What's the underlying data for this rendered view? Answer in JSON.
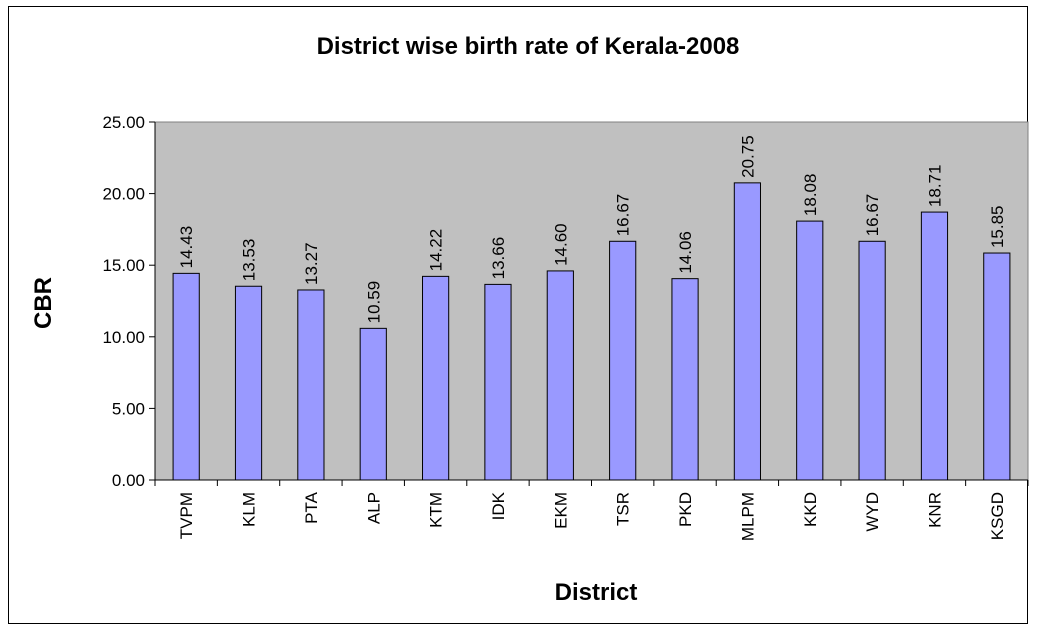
{
  "chart_data": {
    "type": "bar",
    "title": "District wise birth rate of Kerala-2008",
    "xlabel": "District",
    "ylabel": "CBR",
    "categories": [
      "TVPM",
      "KLM",
      "PTA",
      "ALP",
      "KTM",
      "IDK",
      "EKM",
      "TSR",
      "PKD",
      "MLPM",
      "KKD",
      "WYD",
      "KNR",
      "KSGD"
    ],
    "values": [
      14.43,
      13.53,
      13.27,
      10.59,
      14.22,
      13.66,
      14.6,
      16.67,
      14.06,
      20.75,
      18.08,
      16.67,
      18.71,
      15.85
    ],
    "data_labels": [
      "14.43",
      "13.53",
      "13.27",
      "10.59",
      "14.22",
      "13.66",
      "14.60",
      "16.67",
      "14.06",
      "20.75",
      "18.08",
      "16.67",
      "18.71",
      "15.85"
    ],
    "ylim": [
      0,
      25
    ],
    "yticks": [
      "0.00",
      "5.00",
      "10.00",
      "15.00",
      "20.00",
      "25.00"
    ],
    "grid": false,
    "legend": "none",
    "colors": {
      "plot_background": "#c0c0c0",
      "bar_fill": "#9999ff",
      "bar_stroke": "#000000"
    }
  }
}
